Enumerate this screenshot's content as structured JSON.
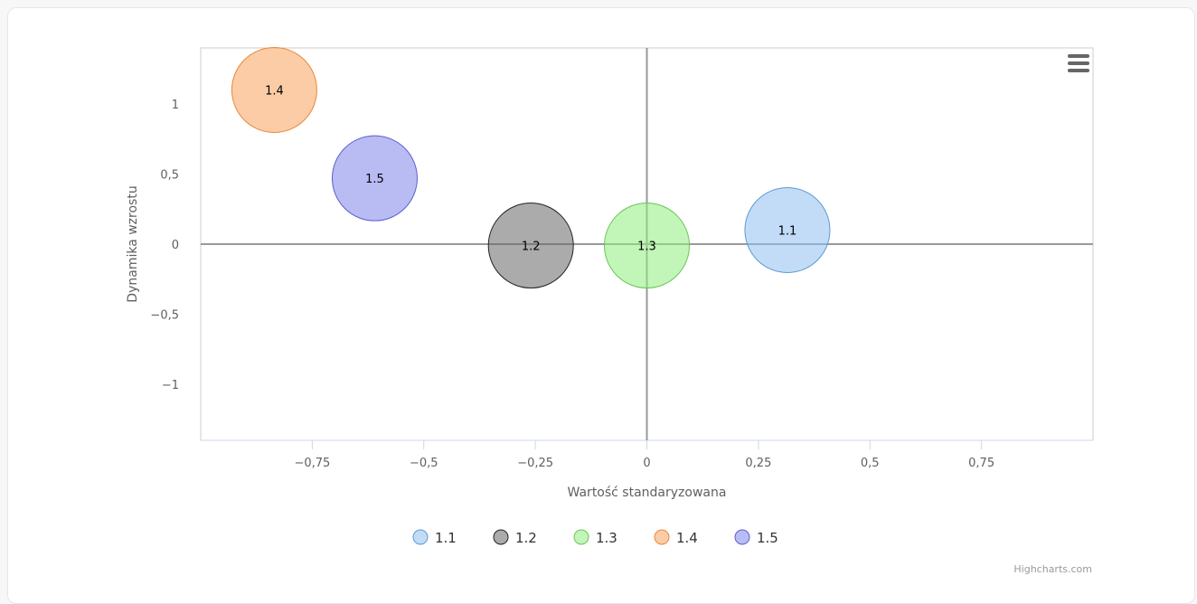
{
  "chart_data": {
    "type": "bubble",
    "xlabel": "Wartość standaryzowana",
    "ylabel": "Dynamika wzrostu",
    "xlim": [
      -1,
      1
    ],
    "ylim": [
      -1.4,
      1.4
    ],
    "x_ticks": [
      -0.75,
      -0.5,
      -0.25,
      0,
      0.25,
      0.5,
      0.75
    ],
    "x_tick_labels": [
      "−0,75",
      "−0,5",
      "−0,25",
      "0",
      "0,25",
      "0,5",
      "0,75"
    ],
    "y_ticks": [
      1,
      0.5,
      0,
      -0.5,
      -1
    ],
    "y_tick_labels": [
      "1",
      "0,5",
      "0",
      "−0,5",
      "−1"
    ],
    "legend_placement": "bottom-center",
    "series": [
      {
        "name": "1.1",
        "x": 0.315,
        "y": 0.1,
        "color": "#90bff0",
        "stroke": "#5b9bd5"
      },
      {
        "name": "1.2",
        "x": -0.26,
        "y": -0.01,
        "color": "#666666",
        "stroke": "#222222"
      },
      {
        "name": "1.3",
        "x": 0.0,
        "y": -0.01,
        "color": "#90ed7d",
        "stroke": "#6cc45a"
      },
      {
        "name": "1.4",
        "x": -0.835,
        "y": 1.1,
        "color": "#f7a35c",
        "stroke": "#e8893a"
      },
      {
        "name": "1.5",
        "x": -0.61,
        "y": 0.47,
        "color": "#8085e9",
        "stroke": "#5a5fd0"
      }
    ]
  },
  "menu_icon": "hamburger-menu-icon",
  "credits": "Highcharts.com"
}
